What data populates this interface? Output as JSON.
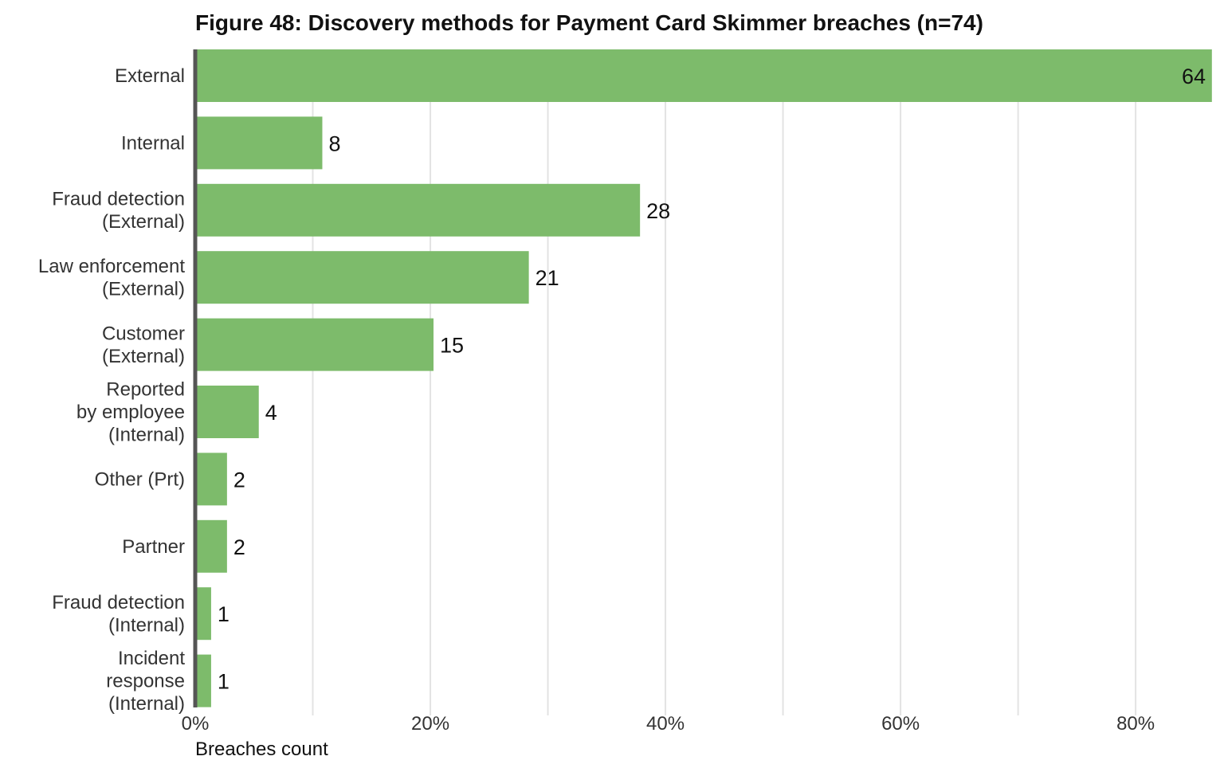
{
  "chart_data": {
    "type": "bar",
    "orientation": "horizontal",
    "title": "Figure 48: Discovery methods for Payment Card Skimmer breaches (n=74)",
    "xlabel": "Breaches count",
    "ylabel": "",
    "n": 74,
    "categories": [
      [
        "External"
      ],
      [
        "Internal"
      ],
      [
        "Fraud detection",
        "(External)"
      ],
      [
        "Law enforcement",
        "(External)"
      ],
      [
        "Customer",
        "(External)"
      ],
      [
        "Reported",
        "by employee",
        "(Internal)"
      ],
      [
        "Other (Prt)"
      ],
      [
        "Partner"
      ],
      [
        "Fraud detection",
        "(Internal)"
      ],
      [
        "Incident",
        "response",
        "(Internal)"
      ]
    ],
    "values": [
      64,
      8,
      28,
      21,
      15,
      4,
      2,
      2,
      1,
      1
    ],
    "value_labels": [
      "64",
      "8",
      "28",
      "21",
      "15",
      "4",
      "2",
      "2",
      "1",
      "1"
    ],
    "xlim": [
      0,
      0.865
    ],
    "x_ticks": [
      0,
      0.2,
      0.4,
      0.6,
      0.8
    ],
    "x_tick_labels": [
      "0%",
      "20%",
      "40%",
      "60%",
      "80%"
    ],
    "x_gridlines": [
      0.1,
      0.2,
      0.3,
      0.4,
      0.5,
      0.6,
      0.7,
      0.8
    ],
    "grid": true,
    "legend": "none",
    "colors": {
      "bar": "#7dbb6b",
      "grid": "#e3e3e3",
      "axis": "#555555",
      "text": "#333333"
    }
  }
}
